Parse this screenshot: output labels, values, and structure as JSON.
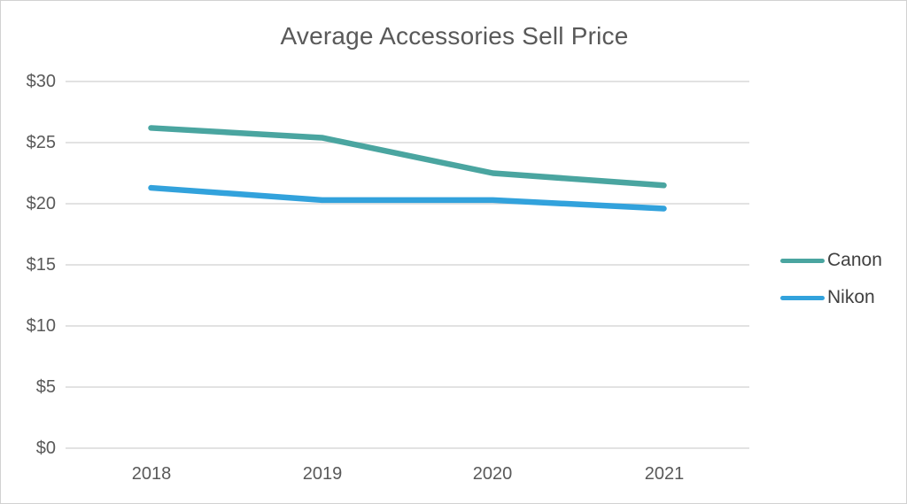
{
  "chart_data": {
    "type": "line",
    "title": "Average Accessories Sell Price",
    "categories": [
      "2018",
      "2019",
      "2020",
      "2021"
    ],
    "series": [
      {
        "name": "Canon",
        "color": "#4aa5a0",
        "values": [
          26.2,
          25.4,
          22.5,
          21.5
        ]
      },
      {
        "name": "Nikon",
        "color": "#32a2dc",
        "values": [
          21.3,
          20.3,
          20.3,
          19.6
        ]
      }
    ],
    "y_tick_labels": [
      "$30",
      "$25",
      "$20",
      "$15",
      "$10",
      "$5",
      "$0"
    ],
    "ylim": [
      0,
      30
    ],
    "y_tick_step": 5,
    "grid": true,
    "gridline_color": "#d9d9d9",
    "legend_position": "right",
    "axis_text_color": "#595959",
    "legend_text_color": "#404040"
  }
}
